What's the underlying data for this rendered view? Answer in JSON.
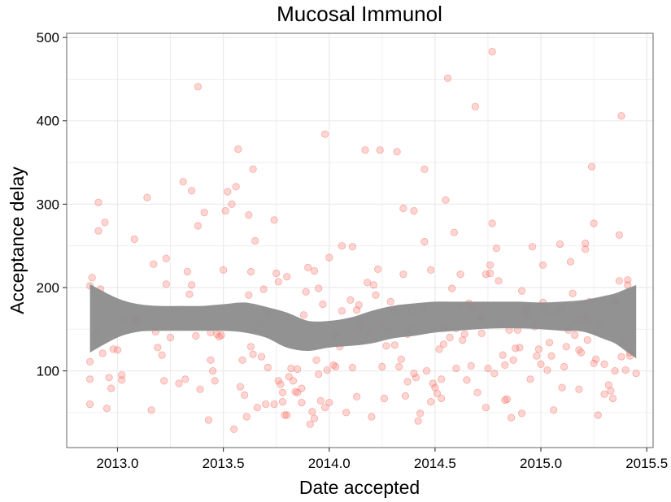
{
  "chart_data": {
    "type": "scatter",
    "title": "Mucosal Immunol",
    "xlabel": "Date accepted",
    "ylabel": "Acceptance delay",
    "xlim": [
      2012.76,
      2015.53
    ],
    "ylim": [
      8,
      505
    ],
    "x_ticks": [
      2013.0,
      2013.5,
      2014.0,
      2014.5,
      2015.0,
      2015.5
    ],
    "x_tick_labels": [
      "2013.0",
      "2013.5",
      "2014.0",
      "2014.5",
      "2015.0",
      "2015.5"
    ],
    "y_ticks": [
      100,
      200,
      300,
      400,
      500
    ],
    "y_tick_labels": [
      "100",
      "200",
      "300",
      "400",
      "500"
    ],
    "grid": true,
    "legend": "none",
    "colors": {
      "points": "#f8766d",
      "band": "#8c8c8c",
      "grid": "#ebebeb",
      "panel_border": "#7f7f7f"
    },
    "series": [
      {
        "type": "scatter",
        "points": [
          [
            2012.87,
            202
          ],
          [
            2012.88,
            212
          ],
          [
            2012.9,
            144
          ],
          [
            2012.91,
            302
          ],
          [
            2012.91,
            268
          ],
          [
            2012.92,
            198
          ],
          [
            2012.93,
            121
          ],
          [
            2012.94,
            278
          ],
          [
            2012.95,
            55
          ],
          [
            2012.96,
            92
          ],
          [
            2012.97,
            79
          ],
          [
            2012.98,
            126
          ],
          [
            2012.87,
            111
          ],
          [
            2012.87,
            90
          ],
          [
            2012.87,
            60
          ],
          [
            2013.0,
            125
          ],
          [
            2013.02,
            89
          ],
          [
            2013.02,
            95
          ],
          [
            2013.03,
            162
          ],
          [
            2013.08,
            258
          ],
          [
            2013.09,
            162
          ],
          [
            2013.1,
            160
          ],
          [
            2013.14,
            308
          ],
          [
            2013.16,
            53
          ],
          [
            2013.17,
            228
          ],
          [
            2013.18,
            147
          ],
          [
            2013.19,
            128
          ],
          [
            2013.21,
            119
          ],
          [
            2013.22,
            88
          ],
          [
            2013.23,
            235
          ],
          [
            2013.23,
            204
          ],
          [
            2013.25,
            140
          ],
          [
            2013.27,
            173
          ],
          [
            2013.29,
            85
          ],
          [
            2013.3,
            155
          ],
          [
            2013.31,
            327
          ],
          [
            2013.32,
            90
          ],
          [
            2013.33,
            219
          ],
          [
            2013.34,
            192
          ],
          [
            2013.35,
            203
          ],
          [
            2013.35,
            316
          ],
          [
            2013.37,
            142
          ],
          [
            2013.38,
            441
          ],
          [
            2013.38,
            274
          ],
          [
            2013.39,
            78
          ],
          [
            2013.41,
            290
          ],
          [
            2013.43,
            41
          ],
          [
            2013.44,
            113
          ],
          [
            2013.44,
            146
          ],
          [
            2013.45,
            100
          ],
          [
            2013.46,
            88
          ],
          [
            2013.47,
            144
          ],
          [
            2013.48,
            141
          ],
          [
            2013.49,
            143
          ],
          [
            2013.5,
            221
          ],
          [
            2013.51,
            292
          ],
          [
            2013.52,
            315
          ],
          [
            2013.54,
            300
          ],
          [
            2013.55,
            30
          ],
          [
            2013.56,
            321
          ],
          [
            2013.57,
            366
          ],
          [
            2013.58,
            81
          ],
          [
            2013.59,
            113
          ],
          [
            2013.6,
            71
          ],
          [
            2013.61,
            45
          ],
          [
            2013.62,
            191
          ],
          [
            2013.62,
            287
          ],
          [
            2013.63,
            219
          ],
          [
            2013.63,
            129
          ],
          [
            2013.64,
            342
          ],
          [
            2013.64,
            120
          ],
          [
            2013.65,
            256
          ],
          [
            2013.66,
            56
          ],
          [
            2013.67,
            157
          ],
          [
            2013.68,
            117
          ],
          [
            2013.69,
            198
          ],
          [
            2013.7,
            60
          ],
          [
            2013.7,
            170
          ],
          [
            2013.71,
            104
          ],
          [
            2013.72,
            168
          ],
          [
            2013.74,
            60
          ],
          [
            2013.74,
            281
          ],
          [
            2013.75,
            217
          ],
          [
            2013.76,
            88
          ],
          [
            2013.76,
            207
          ],
          [
            2013.77,
            84
          ],
          [
            2013.78,
            74
          ],
          [
            2013.78,
            63
          ],
          [
            2013.79,
            47
          ],
          [
            2013.8,
            47
          ],
          [
            2013.8,
            213
          ],
          [
            2013.81,
            93
          ],
          [
            2013.82,
            103
          ],
          [
            2013.83,
            88
          ],
          [
            2013.84,
            75
          ],
          [
            2013.85,
            102
          ],
          [
            2013.85,
            74
          ],
          [
            2013.87,
            62
          ],
          [
            2013.87,
            79
          ],
          [
            2013.88,
            167
          ],
          [
            2013.89,
            195
          ],
          [
            2013.9,
            224
          ],
          [
            2013.91,
            36
          ],
          [
            2013.92,
            51
          ],
          [
            2013.93,
            43
          ],
          [
            2013.93,
            220
          ],
          [
            2013.94,
            113
          ],
          [
            2013.95,
            96
          ],
          [
            2013.95,
            199
          ],
          [
            2013.96,
            64
          ],
          [
            2013.97,
            180
          ],
          [
            2013.98,
            56
          ],
          [
            2013.98,
            384
          ],
          [
            2013.99,
            101
          ],
          [
            2014.0,
            62
          ],
          [
            2014.0,
            236
          ],
          [
            2014.02,
            107
          ],
          [
            2014.02,
            144
          ],
          [
            2014.03,
            105
          ],
          [
            2014.04,
            142
          ],
          [
            2014.05,
            129
          ],
          [
            2014.06,
            172
          ],
          [
            2014.06,
            250
          ],
          [
            2014.08,
            50
          ],
          [
            2014.1,
            185
          ],
          [
            2014.11,
            104
          ],
          [
            2014.11,
            249
          ],
          [
            2014.12,
            145
          ],
          [
            2014.13,
            69
          ],
          [
            2014.13,
            173
          ],
          [
            2014.14,
            179
          ],
          [
            2014.15,
            155
          ],
          [
            2014.17,
            365
          ],
          [
            2014.18,
            206
          ],
          [
            2014.19,
            145
          ],
          [
            2014.2,
            45
          ],
          [
            2014.21,
            203
          ],
          [
            2014.22,
            191
          ],
          [
            2014.23,
            222
          ],
          [
            2014.24,
            365
          ],
          [
            2014.25,
            105
          ],
          [
            2014.25,
            155
          ],
          [
            2014.26,
            67
          ],
          [
            2014.27,
            130
          ],
          [
            2014.28,
            148
          ],
          [
            2014.29,
            183
          ],
          [
            2014.3,
            171
          ],
          [
            2014.31,
            131
          ],
          [
            2014.32,
            363
          ],
          [
            2014.33,
            105
          ],
          [
            2014.34,
            114
          ],
          [
            2014.35,
            216
          ],
          [
            2014.35,
            295
          ],
          [
            2014.36,
            70
          ],
          [
            2014.37,
            144
          ],
          [
            2014.37,
            87
          ],
          [
            2014.38,
            150
          ],
          [
            2014.39,
            173
          ],
          [
            2014.4,
            292
          ],
          [
            2014.4,
            97
          ],
          [
            2014.41,
            92
          ],
          [
            2014.42,
            40
          ],
          [
            2014.43,
            49
          ],
          [
            2014.44,
            173
          ],
          [
            2014.45,
            342
          ],
          [
            2014.45,
            255
          ],
          [
            2014.46,
            100
          ],
          [
            2014.48,
            63
          ],
          [
            2014.48,
            221
          ],
          [
            2014.49,
            85
          ],
          [
            2014.5,
            80
          ],
          [
            2014.51,
            73
          ],
          [
            2014.52,
            126
          ],
          [
            2014.53,
            67
          ],
          [
            2014.53,
            90
          ],
          [
            2014.54,
            132
          ],
          [
            2014.54,
            153
          ],
          [
            2014.55,
            305
          ],
          [
            2014.56,
            451
          ],
          [
            2014.57,
            140
          ],
          [
            2014.58,
            199
          ],
          [
            2014.59,
            266
          ],
          [
            2014.6,
            151
          ],
          [
            2014.6,
            103
          ],
          [
            2014.61,
            178
          ],
          [
            2014.62,
            216
          ],
          [
            2014.63,
            137
          ],
          [
            2014.64,
            144
          ],
          [
            2014.65,
            89
          ],
          [
            2014.66,
            181
          ],
          [
            2014.67,
            106
          ],
          [
            2014.68,
            175
          ],
          [
            2014.69,
            417
          ],
          [
            2014.7,
            74
          ],
          [
            2014.71,
            161
          ],
          [
            2014.72,
            165
          ],
          [
            2014.72,
            145
          ],
          [
            2014.74,
            56
          ],
          [
            2014.74,
            216
          ],
          [
            2014.75,
            103
          ],
          [
            2014.76,
            227
          ],
          [
            2014.76,
            217
          ],
          [
            2014.77,
            277
          ],
          [
            2014.77,
            483
          ],
          [
            2014.78,
            97
          ],
          [
            2014.79,
            247
          ],
          [
            2014.8,
            208
          ],
          [
            2014.81,
            157
          ],
          [
            2014.82,
            119
          ],
          [
            2014.83,
            107
          ],
          [
            2014.83,
            65
          ],
          [
            2014.84,
            66
          ],
          [
            2014.85,
            149
          ],
          [
            2014.86,
            44
          ],
          [
            2014.87,
            113
          ],
          [
            2014.88,
            127
          ],
          [
            2014.89,
            149
          ],
          [
            2014.9,
            128
          ],
          [
            2014.91,
            196
          ],
          [
            2014.91,
            49
          ],
          [
            2014.92,
            171
          ],
          [
            2014.93,
            176
          ],
          [
            2014.94,
            166
          ],
          [
            2014.95,
            90
          ],
          [
            2014.96,
            249
          ],
          [
            2014.97,
            153
          ],
          [
            2014.98,
            118
          ],
          [
            2014.99,
            126
          ],
          [
            2015.0,
            108
          ],
          [
            2015.01,
            227
          ],
          [
            2015.01,
            182
          ],
          [
            2015.02,
            172
          ],
          [
            2015.03,
            101
          ],
          [
            2015.04,
            134
          ],
          [
            2015.05,
            118
          ],
          [
            2015.06,
            53
          ],
          [
            2015.07,
            169
          ],
          [
            2015.09,
            252
          ],
          [
            2015.1,
            175
          ],
          [
            2015.1,
            80
          ],
          [
            2015.11,
            105
          ],
          [
            2015.12,
            129
          ],
          [
            2015.13,
            149
          ],
          [
            2015.14,
            231
          ],
          [
            2015.15,
            193
          ],
          [
            2015.16,
            143
          ],
          [
            2015.17,
            160
          ],
          [
            2015.18,
            125
          ],
          [
            2015.18,
            78
          ],
          [
            2015.19,
            122
          ],
          [
            2015.2,
            162
          ],
          [
            2015.21,
            253
          ],
          [
            2015.21,
            246
          ],
          [
            2015.22,
            163
          ],
          [
            2015.22,
            137
          ],
          [
            2015.23,
            183
          ],
          [
            2015.24,
            345
          ],
          [
            2015.25,
            109
          ],
          [
            2015.25,
            277
          ],
          [
            2015.26,
            148
          ],
          [
            2015.26,
            114
          ],
          [
            2015.27,
            47
          ],
          [
            2015.28,
            160
          ],
          [
            2015.3,
            108
          ],
          [
            2015.3,
            72
          ],
          [
            2015.32,
            83
          ],
          [
            2015.33,
            76
          ],
          [
            2015.34,
            67
          ],
          [
            2015.35,
            183
          ],
          [
            2015.35,
            183
          ],
          [
            2015.35,
            100
          ],
          [
            2015.37,
            208
          ],
          [
            2015.37,
            263
          ],
          [
            2015.38,
            406
          ],
          [
            2015.38,
            117
          ],
          [
            2015.4,
            135
          ],
          [
            2015.4,
            101
          ],
          [
            2015.41,
            209
          ],
          [
            2015.41,
            203
          ],
          [
            2015.42,
            122
          ],
          [
            2015.42,
            118
          ],
          [
            2015.45,
            97
          ]
        ]
      },
      {
        "type": "band",
        "x": [
          2012.87,
          2013.0,
          2013.1,
          2013.2,
          2013.3,
          2013.4,
          2013.5,
          2013.6,
          2013.7,
          2013.8,
          2013.9,
          2014.0,
          2014.1,
          2014.2,
          2014.3,
          2014.4,
          2014.5,
          2014.6,
          2014.7,
          2014.8,
          2014.9,
          2015.0,
          2015.1,
          2015.2,
          2015.3,
          2015.35,
          2015.4,
          2015.45
        ],
        "lower": [
          122,
          140,
          147,
          148,
          148,
          148,
          148,
          146,
          140,
          128,
          124,
          128,
          130,
          133,
          139,
          142,
          146,
          148,
          150,
          151,
          151,
          150,
          148,
          147,
          138,
          133,
          124,
          115
        ],
        "upper": [
          204,
          187,
          180,
          178,
          178,
          178,
          180,
          182,
          177,
          170,
          160,
          160,
          164,
          172,
          178,
          181,
          183,
          183,
          183,
          183,
          183,
          182,
          183,
          185,
          190,
          193,
          198,
          203
        ]
      }
    ]
  }
}
